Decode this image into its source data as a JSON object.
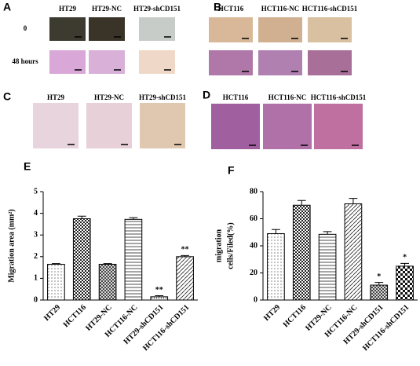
{
  "panels": [
    {
      "letter": "A",
      "columns": [
        "HT29",
        "HT29-NC",
        "HT29-shCD151"
      ],
      "rows": [
        "0",
        "48 hours"
      ]
    },
    {
      "letter": "B",
      "columns": [
        "HCT116",
        "HCT116-NC",
        "HCT116-shCD151"
      ]
    },
    {
      "letter": "C",
      "columns": [
        "HT29",
        "HT29-NC",
        "HT29-shCD151"
      ]
    },
    {
      "letter": "D",
      "columns": [
        "HCT116",
        "HCT116-NC",
        "HCT116-shCD151"
      ]
    }
  ],
  "chart_data": [
    {
      "type": "bar",
      "label": "E",
      "ylabel": [
        "Migration area (mm²)"
      ],
      "categories": [
        "HT29",
        "HCT116",
        "HT29-NC",
        "HCT116-NC",
        "HT29-shCD151",
        "HCT116-shCD151"
      ],
      "values": [
        1.65,
        3.75,
        1.65,
        3.72,
        0.15,
        2.0
      ],
      "errors": [
        0.03,
        0.12,
        0.03,
        0.08,
        0.05,
        0.05
      ],
      "annotations": [
        null,
        null,
        null,
        null,
        "**",
        "**"
      ],
      "patterns": [
        "dots",
        "checker",
        "grid",
        "hlines",
        "dense",
        "diag"
      ],
      "ylim": [
        0,
        5
      ],
      "yticks": [
        0,
        1,
        2,
        3,
        4,
        5
      ]
    },
    {
      "type": "bar",
      "label": "F",
      "ylabel": [
        "migration",
        "cells/Filed(%)"
      ],
      "categories": [
        "HT29",
        "HCT116",
        "HT29-NC",
        "HCT116-NC",
        "HT29-shCD151",
        "HCT116-shCD151"
      ],
      "values": [
        49,
        70,
        48.5,
        71,
        11,
        25
      ],
      "errors": [
        3,
        3.5,
        2,
        4,
        2,
        2
      ],
      "annotations": [
        null,
        null,
        null,
        null,
        "*",
        "*"
      ],
      "patterns": [
        "dots",
        "checker",
        "hlines",
        "diag",
        "grid",
        "bigchecker"
      ],
      "ylim": [
        0,
        80
      ],
      "yticks": [
        0,
        20,
        40,
        60,
        80
      ]
    }
  ]
}
